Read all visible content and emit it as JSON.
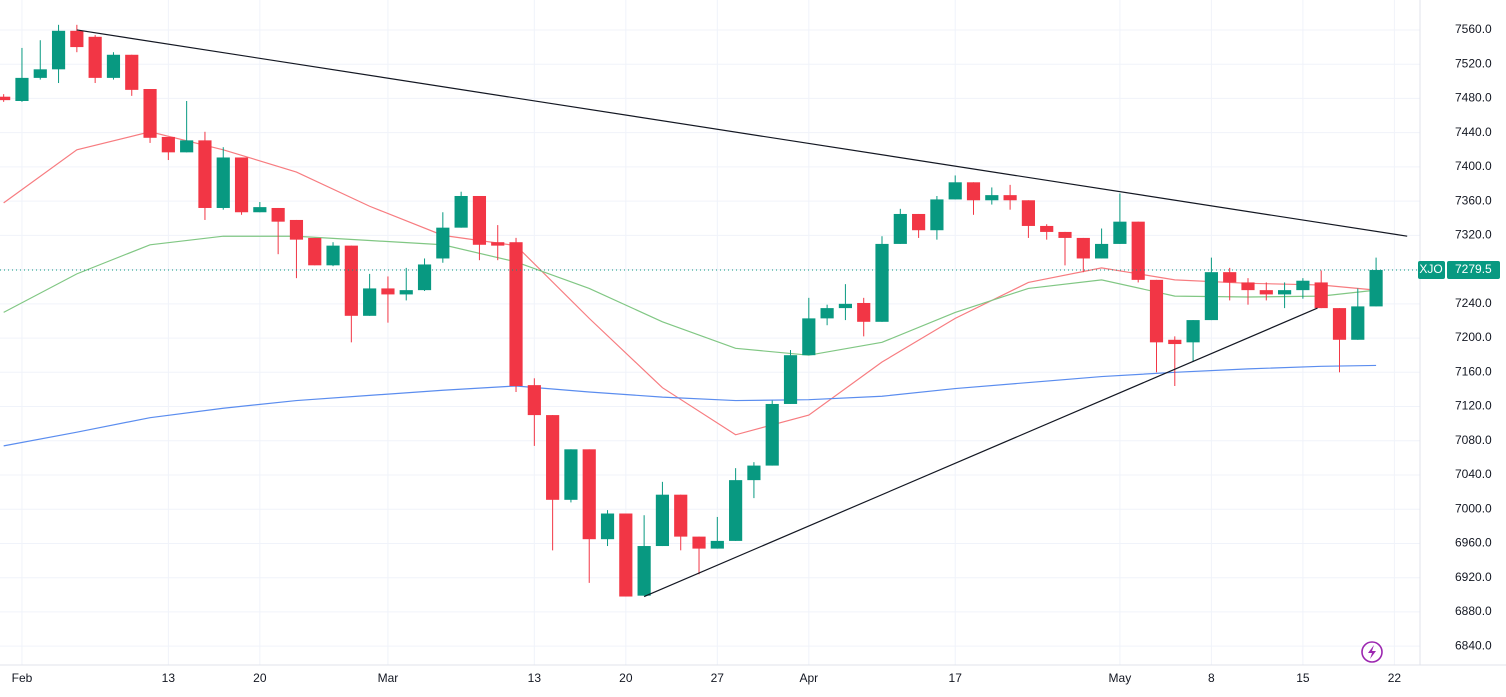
{
  "chart_data": {
    "type": "candlestick",
    "up_color": "#089981",
    "down_color": "#f23645",
    "candles": {
      "open": [
        7482,
        7477,
        7504,
        7514,
        7559,
        7552,
        7504,
        7531,
        7491,
        7435,
        7417,
        7431,
        7352,
        7411,
        7347,
        7352,
        7338,
        7317,
        7285,
        7308,
        7226,
        7258,
        7251,
        7256,
        7293,
        7329,
        7366,
        7312,
        7312,
        7145,
        7110,
        7011,
        7070,
        6965,
        6995,
        6899,
        6957,
        7017,
        6968,
        6954,
        6963,
        7034,
        7051,
        7123,
        7180,
        7223,
        7235,
        7241,
        7219,
        7310,
        7345,
        7326,
        7362,
        7382,
        7361,
        7367,
        7361,
        7331,
        7324,
        7317,
        7293,
        7310,
        7336,
        7268,
        7198,
        7195,
        7221,
        7277,
        7265,
        7256,
        7251,
        7256,
        7265,
        7235,
        7198,
        7237
      ],
      "high": [
        7485,
        7539,
        7548,
        7566,
        7566,
        7554,
        7534,
        7531,
        7491,
        7435,
        7477,
        7441,
        7423,
        7411,
        7359,
        7352,
        7338,
        7317,
        7312,
        7308,
        7275,
        7272,
        7282,
        7293,
        7347,
        7371,
        7366,
        7332,
        7317,
        7153,
        7110,
        7070,
        7070,
        6999,
        6995,
        6993,
        7032,
        7017,
        6968,
        6991,
        7048,
        7055,
        7127,
        7186,
        7247,
        7239,
        7263,
        7247,
        7319,
        7351,
        7345,
        7366,
        7390,
        7382,
        7376,
        7379,
        7361,
        7333,
        7324,
        7317,
        7328,
        7369,
        7336,
        7268,
        7202,
        7221,
        7294,
        7282,
        7270,
        7265,
        7265,
        7270,
        7279,
        7235,
        7258,
        7294
      ],
      "low": [
        7476,
        7476,
        7502,
        7498,
        7534,
        7498,
        7502,
        7483,
        7428,
        7408,
        7417,
        7338,
        7350,
        7344,
        7347,
        7298,
        7270,
        7285,
        7284,
        7195,
        7226,
        7218,
        7244,
        7255,
        7288,
        7329,
        7291,
        7291,
        7137,
        7074,
        6952,
        7008,
        6914,
        6957,
        6898,
        6899,
        6957,
        6952,
        6924,
        6954,
        6963,
        7013,
        7051,
        7123,
        7180,
        7215,
        7221,
        7202,
        7219,
        7310,
        7317,
        7315,
        7362,
        7344,
        7356,
        7350,
        7317,
        7315,
        7285,
        7277,
        7293,
        7310,
        7265,
        7160,
        7144,
        7172,
        7221,
        7244,
        7239,
        7244,
        7235,
        7246,
        7235,
        7160,
        7198,
        7237
      ],
      "close": [
        7478,
        7504,
        7514,
        7559,
        7540,
        7504,
        7531,
        7490,
        7434,
        7417,
        7431,
        7352,
        7411,
        7347,
        7353,
        7336,
        7315,
        7285,
        7308,
        7226,
        7258,
        7251,
        7256,
        7286,
        7329,
        7366,
        7309,
        7308,
        7144,
        7110,
        7011,
        7070,
        6965,
        6995,
        6898,
        6957,
        7017,
        6968,
        6954,
        6963,
        7034,
        7051,
        7123,
        7180,
        7223,
        7235,
        7240,
        7219,
        7310,
        7345,
        7326,
        7362,
        7382,
        7361,
        7367,
        7361,
        7331,
        7324,
        7317,
        7293,
        7310,
        7336,
        7268,
        7195,
        7193,
        7221,
        7277,
        7265,
        7256,
        7251,
        7256,
        7267,
        7235,
        7198,
        7237,
        7279.5
      ]
    },
    "lines": [
      {
        "color": "#f77c80",
        "x": [
          0,
          4,
          8,
          12,
          16,
          20,
          24,
          28,
          32,
          36,
          40,
          44,
          48,
          52,
          56,
          60,
          64,
          68,
          72,
          75
        ],
        "values": [
          7358,
          7420,
          7441,
          7420,
          7394,
          7354,
          7320,
          7308,
          7223,
          7142,
          7087,
          7110,
          7172,
          7223,
          7265,
          7282,
          7268,
          7264,
          7262,
          7256
        ]
      },
      {
        "color": "#81c784",
        "x": [
          0,
          4,
          8,
          12,
          16,
          20,
          24,
          28,
          32,
          36,
          40,
          44,
          48,
          52,
          56,
          60,
          64,
          68,
          72,
          75
        ],
        "values": [
          7230,
          7275,
          7309,
          7319,
          7319,
          7314,
          7309,
          7289,
          7258,
          7219,
          7188,
          7180,
          7195,
          7230,
          7258,
          7268,
          7249,
          7248,
          7249,
          7256
        ]
      },
      {
        "color": "#5b8def",
        "x": [
          0,
          4,
          8,
          12,
          16,
          20,
          24,
          28,
          32,
          36,
          40,
          44,
          48,
          52,
          56,
          60,
          64,
          68,
          72,
          75
        ],
        "values": [
          7074,
          7090,
          7107,
          7118,
          7127,
          7133,
          7139,
          7144,
          7137,
          7131,
          7127,
          7128,
          7132,
          7141,
          7148,
          7155,
          7160,
          7164,
          7167,
          7168
        ]
      }
    ],
    "trendlines": [
      {
        "color": "#131722",
        "x": [
          4,
          76.7
        ],
        "y": [
          7560,
          7319
        ]
      },
      {
        "color": "#131722",
        "x": [
          35,
          71.8
        ],
        "y": [
          6898,
          7235
        ]
      }
    ],
    "last_price": {
      "name": "XJO",
      "value": 7279.5,
      "color": "#089981"
    },
    "xlim": [
      -0.2,
      77.4
    ],
    "xticks": [
      {
        "value": 1,
        "label": "Feb"
      },
      {
        "value": 9,
        "label": "13"
      },
      {
        "value": 14,
        "label": "20"
      },
      {
        "value": 21,
        "label": "Mar"
      },
      {
        "value": 29,
        "label": "13"
      },
      {
        "value": 34,
        "label": "20"
      },
      {
        "value": 39,
        "label": "27"
      },
      {
        "value": 44,
        "label": "Apr"
      },
      {
        "value": 52,
        "label": "17"
      },
      {
        "value": 61,
        "label": "May"
      },
      {
        "value": 66,
        "label": "8"
      },
      {
        "value": 71,
        "label": "15"
      },
      {
        "value": 76,
        "label": "22"
      }
    ],
    "ylim": [
      6818,
      7595
    ],
    "yticks": [
      {
        "value": 6840,
        "label": "6840.0"
      },
      {
        "value": 6880,
        "label": "6880.0"
      },
      {
        "value": 6920,
        "label": "6920.0"
      },
      {
        "value": 6960,
        "label": "6960.0"
      },
      {
        "value": 7000,
        "label": "7000.0"
      },
      {
        "value": 7040,
        "label": "7040.0"
      },
      {
        "value": 7080,
        "label": "7080.0"
      },
      {
        "value": 7120,
        "label": "7120.0"
      },
      {
        "value": 7160,
        "label": "7160.0"
      },
      {
        "value": 7200,
        "label": "7200.0"
      },
      {
        "value": 7240,
        "label": "7240.0"
      },
      {
        "value": 7280,
        "label": "7280.0"
      },
      {
        "value": 7320,
        "label": "7320.0"
      },
      {
        "value": 7360,
        "label": "7360.0"
      },
      {
        "value": 7400,
        "label": "7400.0"
      },
      {
        "value": 7440,
        "label": "7440.0"
      },
      {
        "value": 7480,
        "label": "7480.0"
      },
      {
        "value": 7520,
        "label": "7520.0"
      },
      {
        "value": 7560,
        "label": "7560.0"
      }
    ],
    "grid": true
  }
}
